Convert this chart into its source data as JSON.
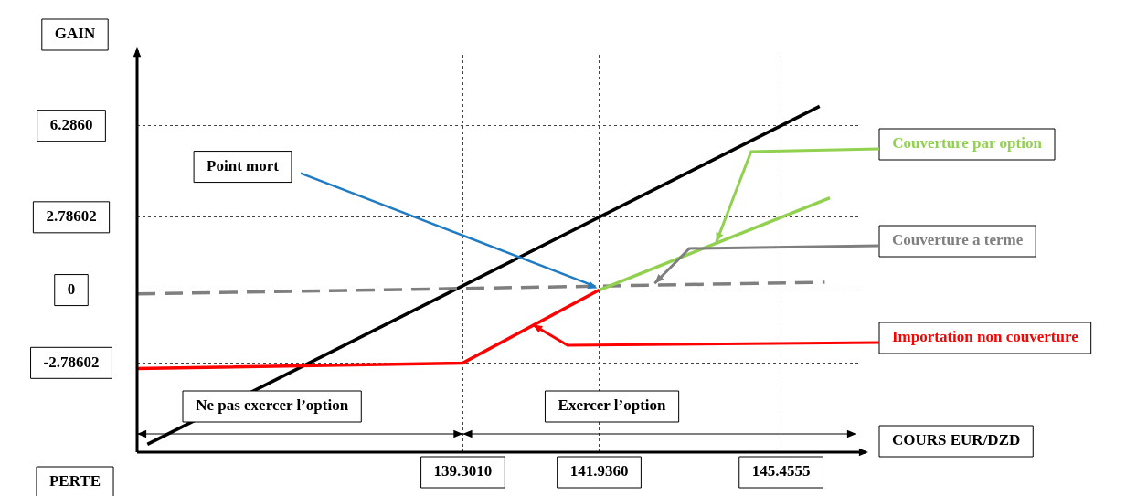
{
  "chart_data": {
    "type": "line",
    "xlabel": "COURS EUR/DZD",
    "ylabel": "GAIN",
    "xlim": [
      133,
      147
    ],
    "ylim": [
      -6.2,
      9
    ],
    "xticks": [
      {
        "value": 139.301,
        "label": "139.3010"
      },
      {
        "value": 141.936,
        "label": "141.9360"
      },
      {
        "value": 145.4555,
        "label": "145.4555"
      }
    ],
    "yticks": [
      {
        "value": 6.286,
        "label": "6.2860"
      },
      {
        "value": 2.78602,
        "label": "2.78602"
      },
      0,
      {
        "value": -2.78602,
        "label": "-2.78602"
      }
    ],
    "grid": true,
    "legend": false,
    "marker": "none",
    "series": [
      {
        "name": "Couverture par option",
        "color": "#92d050",
        "x": [
          141.936,
          146.4
        ],
        "values": [
          0,
          3.53
        ]
      },
      {
        "name": "Couverture a terme",
        "color": "#7f7f7f",
        "x": [
          133,
          146.3
        ],
        "values": [
          -0.15,
          0.3
        ],
        "line_style": "dashed"
      },
      {
        "name": "Importation non couverture",
        "color": "#ff0000",
        "x": [
          133,
          139.301,
          141.936
        ],
        "values": [
          -3.0,
          -2.79,
          0
        ]
      },
      {
        "color": "#000000",
        "x": [
          133.2,
          146.2
        ],
        "values": [
          -5.9,
          7.03
        ]
      }
    ],
    "annotations": [
      "Point mort",
      "Ne pas exercer l’option",
      "Exercer l’option",
      "PERTE"
    ]
  }
}
